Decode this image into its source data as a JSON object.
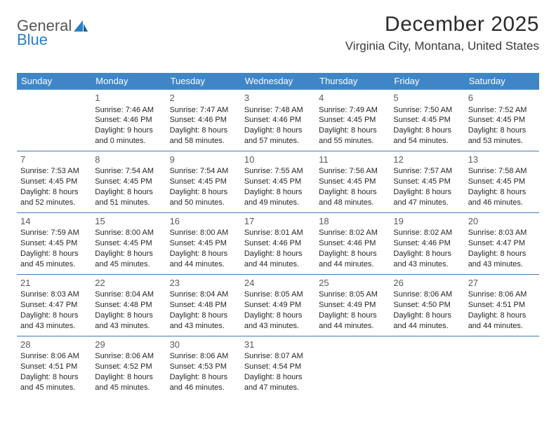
{
  "logo": {
    "text_a": "General",
    "text_b": "Blue"
  },
  "title": "December 2025",
  "subtitle": "Virginia City, Montana, United States",
  "colors": {
    "header_bg": "#3f86c7",
    "header_text": "#ffffff",
    "rule": "#3f7cb5",
    "body_text": "#262626",
    "daynum": "#5a5a5a",
    "logo_gray": "#555555",
    "logo_blue": "#2a7fc9",
    "page_bg": "#ffffff"
  },
  "day_headers": [
    "Sunday",
    "Monday",
    "Tuesday",
    "Wednesday",
    "Thursday",
    "Friday",
    "Saturday"
  ],
  "weeks": [
    [
      {
        "num": "",
        "sunrise": "",
        "sunset": "",
        "daylight": ""
      },
      {
        "num": "1",
        "sunrise": "Sunrise: 7:46 AM",
        "sunset": "Sunset: 4:46 PM",
        "daylight": "Daylight: 9 hours and 0 minutes."
      },
      {
        "num": "2",
        "sunrise": "Sunrise: 7:47 AM",
        "sunset": "Sunset: 4:46 PM",
        "daylight": "Daylight: 8 hours and 58 minutes."
      },
      {
        "num": "3",
        "sunrise": "Sunrise: 7:48 AM",
        "sunset": "Sunset: 4:46 PM",
        "daylight": "Daylight: 8 hours and 57 minutes."
      },
      {
        "num": "4",
        "sunrise": "Sunrise: 7:49 AM",
        "sunset": "Sunset: 4:45 PM",
        "daylight": "Daylight: 8 hours and 55 minutes."
      },
      {
        "num": "5",
        "sunrise": "Sunrise: 7:50 AM",
        "sunset": "Sunset: 4:45 PM",
        "daylight": "Daylight: 8 hours and 54 minutes."
      },
      {
        "num": "6",
        "sunrise": "Sunrise: 7:52 AM",
        "sunset": "Sunset: 4:45 PM",
        "daylight": "Daylight: 8 hours and 53 minutes."
      }
    ],
    [
      {
        "num": "7",
        "sunrise": "Sunrise: 7:53 AM",
        "sunset": "Sunset: 4:45 PM",
        "daylight": "Daylight: 8 hours and 52 minutes."
      },
      {
        "num": "8",
        "sunrise": "Sunrise: 7:54 AM",
        "sunset": "Sunset: 4:45 PM",
        "daylight": "Daylight: 8 hours and 51 minutes."
      },
      {
        "num": "9",
        "sunrise": "Sunrise: 7:54 AM",
        "sunset": "Sunset: 4:45 PM",
        "daylight": "Daylight: 8 hours and 50 minutes."
      },
      {
        "num": "10",
        "sunrise": "Sunrise: 7:55 AM",
        "sunset": "Sunset: 4:45 PM",
        "daylight": "Daylight: 8 hours and 49 minutes."
      },
      {
        "num": "11",
        "sunrise": "Sunrise: 7:56 AM",
        "sunset": "Sunset: 4:45 PM",
        "daylight": "Daylight: 8 hours and 48 minutes."
      },
      {
        "num": "12",
        "sunrise": "Sunrise: 7:57 AM",
        "sunset": "Sunset: 4:45 PM",
        "daylight": "Daylight: 8 hours and 47 minutes."
      },
      {
        "num": "13",
        "sunrise": "Sunrise: 7:58 AM",
        "sunset": "Sunset: 4:45 PM",
        "daylight": "Daylight: 8 hours and 46 minutes."
      }
    ],
    [
      {
        "num": "14",
        "sunrise": "Sunrise: 7:59 AM",
        "sunset": "Sunset: 4:45 PM",
        "daylight": "Daylight: 8 hours and 45 minutes."
      },
      {
        "num": "15",
        "sunrise": "Sunrise: 8:00 AM",
        "sunset": "Sunset: 4:45 PM",
        "daylight": "Daylight: 8 hours and 45 minutes."
      },
      {
        "num": "16",
        "sunrise": "Sunrise: 8:00 AM",
        "sunset": "Sunset: 4:45 PM",
        "daylight": "Daylight: 8 hours and 44 minutes."
      },
      {
        "num": "17",
        "sunrise": "Sunrise: 8:01 AM",
        "sunset": "Sunset: 4:46 PM",
        "daylight": "Daylight: 8 hours and 44 minutes."
      },
      {
        "num": "18",
        "sunrise": "Sunrise: 8:02 AM",
        "sunset": "Sunset: 4:46 PM",
        "daylight": "Daylight: 8 hours and 44 minutes."
      },
      {
        "num": "19",
        "sunrise": "Sunrise: 8:02 AM",
        "sunset": "Sunset: 4:46 PM",
        "daylight": "Daylight: 8 hours and 43 minutes."
      },
      {
        "num": "20",
        "sunrise": "Sunrise: 8:03 AM",
        "sunset": "Sunset: 4:47 PM",
        "daylight": "Daylight: 8 hours and 43 minutes."
      }
    ],
    [
      {
        "num": "21",
        "sunrise": "Sunrise: 8:03 AM",
        "sunset": "Sunset: 4:47 PM",
        "daylight": "Daylight: 8 hours and 43 minutes."
      },
      {
        "num": "22",
        "sunrise": "Sunrise: 8:04 AM",
        "sunset": "Sunset: 4:48 PM",
        "daylight": "Daylight: 8 hours and 43 minutes."
      },
      {
        "num": "23",
        "sunrise": "Sunrise: 8:04 AM",
        "sunset": "Sunset: 4:48 PM",
        "daylight": "Daylight: 8 hours and 43 minutes."
      },
      {
        "num": "24",
        "sunrise": "Sunrise: 8:05 AM",
        "sunset": "Sunset: 4:49 PM",
        "daylight": "Daylight: 8 hours and 43 minutes."
      },
      {
        "num": "25",
        "sunrise": "Sunrise: 8:05 AM",
        "sunset": "Sunset: 4:49 PM",
        "daylight": "Daylight: 8 hours and 44 minutes."
      },
      {
        "num": "26",
        "sunrise": "Sunrise: 8:06 AM",
        "sunset": "Sunset: 4:50 PM",
        "daylight": "Daylight: 8 hours and 44 minutes."
      },
      {
        "num": "27",
        "sunrise": "Sunrise: 8:06 AM",
        "sunset": "Sunset: 4:51 PM",
        "daylight": "Daylight: 8 hours and 44 minutes."
      }
    ],
    [
      {
        "num": "28",
        "sunrise": "Sunrise: 8:06 AM",
        "sunset": "Sunset: 4:51 PM",
        "daylight": "Daylight: 8 hours and 45 minutes."
      },
      {
        "num": "29",
        "sunrise": "Sunrise: 8:06 AM",
        "sunset": "Sunset: 4:52 PM",
        "daylight": "Daylight: 8 hours and 45 minutes."
      },
      {
        "num": "30",
        "sunrise": "Sunrise: 8:06 AM",
        "sunset": "Sunset: 4:53 PM",
        "daylight": "Daylight: 8 hours and 46 minutes."
      },
      {
        "num": "31",
        "sunrise": "Sunrise: 8:07 AM",
        "sunset": "Sunset: 4:54 PM",
        "daylight": "Daylight: 8 hours and 47 minutes."
      },
      {
        "num": "",
        "sunrise": "",
        "sunset": "",
        "daylight": ""
      },
      {
        "num": "",
        "sunrise": "",
        "sunset": "",
        "daylight": ""
      },
      {
        "num": "",
        "sunrise": "",
        "sunset": "",
        "daylight": ""
      }
    ]
  ]
}
